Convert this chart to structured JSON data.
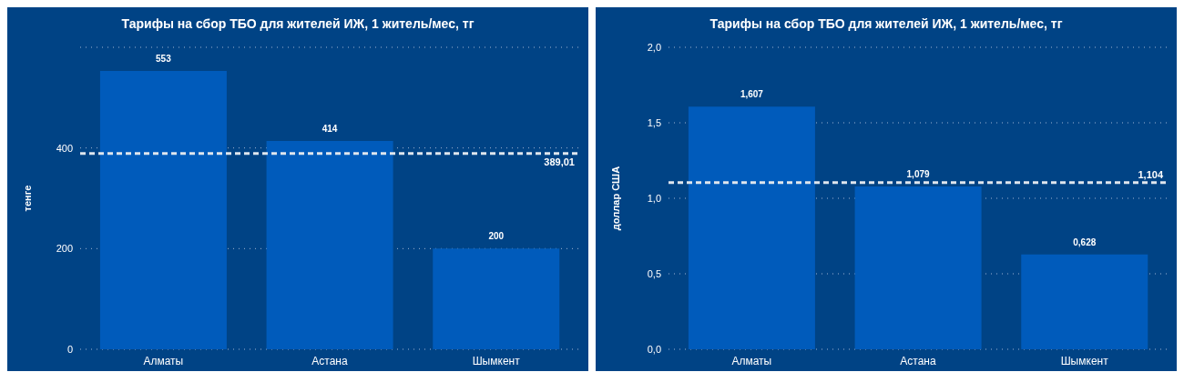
{
  "chart_data": [
    {
      "type": "bar",
      "title": "Тарифы на сбор ТБО для жителей ИЖ, 1 житель/мес, тг",
      "ylabel": "тенге",
      "categories": [
        "Алматы",
        "Астана",
        "Шымкент"
      ],
      "values": [
        553,
        414,
        200
      ],
      "value_labels": [
        "553",
        "414",
        "200"
      ],
      "color": "#005bbb",
      "ylim": [
        0,
        600
      ],
      "yticks": [
        0,
        200,
        400,
        {
          "value": 600,
          "label": null
        }
      ],
      "grid": "y",
      "ref_lines": [
        {
          "axis": "y",
          "value": 389.01,
          "label": "389,01",
          "color": "#dfe6ee",
          "line_style": "dashed"
        }
      ]
    },
    {
      "type": "bar",
      "title": "Тарифы на сбор ТБО для жителей ИЖ, 1 житель/мес, тг",
      "ylabel": "доллар США",
      "categories": [
        "Алматы",
        "Астана",
        "Шымкент"
      ],
      "values": [
        1.607,
        1.079,
        0.628
      ],
      "value_labels": [
        "1,607",
        "1,079",
        "0,628"
      ],
      "color": "#005bbb",
      "ylim": [
        0,
        2
      ],
      "yticks": [
        {
          "value": 0,
          "label": "0,0"
        },
        {
          "value": 0.5,
          "label": "0,5"
        },
        {
          "value": 1,
          "label": "1,0"
        },
        {
          "value": 1.5,
          "label": "1,5"
        },
        {
          "value": 2,
          "label": "2,0"
        }
      ],
      "grid": "y",
      "ref_lines": [
        {
          "axis": "y",
          "value": 1.104,
          "label": "1,104",
          "color": "#dfe6ee",
          "line_style": "dashed"
        }
      ]
    }
  ]
}
